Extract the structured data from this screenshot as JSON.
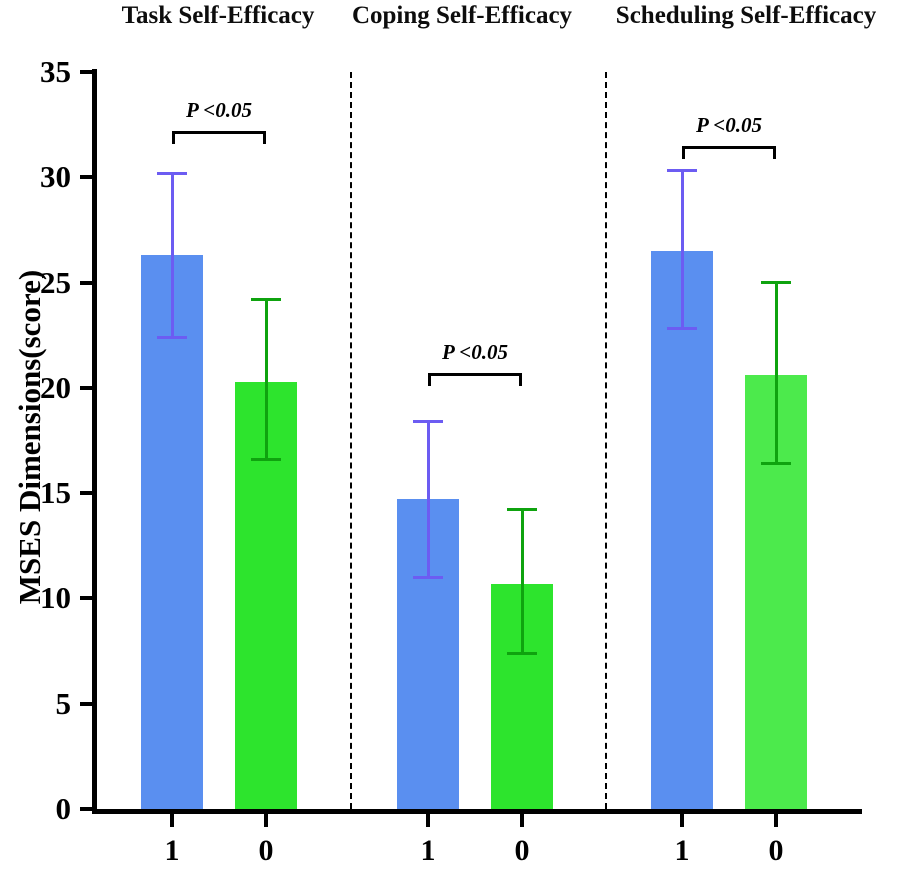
{
  "chart_data": {
    "type": "bar",
    "title": "",
    "ylabel": "MSES Dimensions(score)",
    "ylim": [
      0,
      35
    ],
    "yticks": [
      0,
      5,
      10,
      15,
      20,
      25,
      30,
      35
    ],
    "legend_position": "none",
    "grid": false,
    "colors": {
      "bar_blue": "#5a8ff0",
      "bar_green": "#2de42d",
      "bar_green_light": "#4cea4c",
      "error_blue": "#6c5cf2",
      "error_green": "#0fa30f",
      "axis": "#000000"
    },
    "groups": [
      {
        "title": "Task Self-Efficacy",
        "sig": {
          "label": "P <0.05",
          "y": 32.2
        },
        "bars": [
          {
            "label": "1",
            "value": 26.3,
            "err_up": 3.9,
            "err_down": 3.9,
            "fill": "#5a8ff0",
            "err_color": "#6c5cf2"
          },
          {
            "label": "0",
            "value": 20.3,
            "err_up": 3.9,
            "err_down": 3.7,
            "fill": "#2de42d",
            "err_color": "#0fa30f"
          }
        ]
      },
      {
        "title": "Coping Self-Efficacy",
        "sig": {
          "label": "P <0.05",
          "y": 20.7
        },
        "bars": [
          {
            "label": "1",
            "value": 14.7,
            "err_up": 3.7,
            "err_down": 3.7,
            "fill": "#5a8ff0",
            "err_color": "#6c5cf2"
          },
          {
            "label": "0",
            "value": 10.7,
            "err_up": 3.5,
            "err_down": 3.3,
            "fill": "#2de42d",
            "err_color": "#0fa30f"
          }
        ]
      },
      {
        "title": "Scheduling Self-Efficacy",
        "sig": {
          "label": "P <0.05",
          "y": 31.5
        },
        "bars": [
          {
            "label": "1",
            "value": 26.5,
            "err_up": 3.8,
            "err_down": 3.7,
            "fill": "#5a8ff0",
            "err_color": "#6c5cf2"
          },
          {
            "label": "0",
            "value": 20.6,
            "err_up": 4.4,
            "err_down": 4.2,
            "fill": "#4cea4c",
            "err_color": "#0fa30f"
          }
        ]
      }
    ]
  }
}
